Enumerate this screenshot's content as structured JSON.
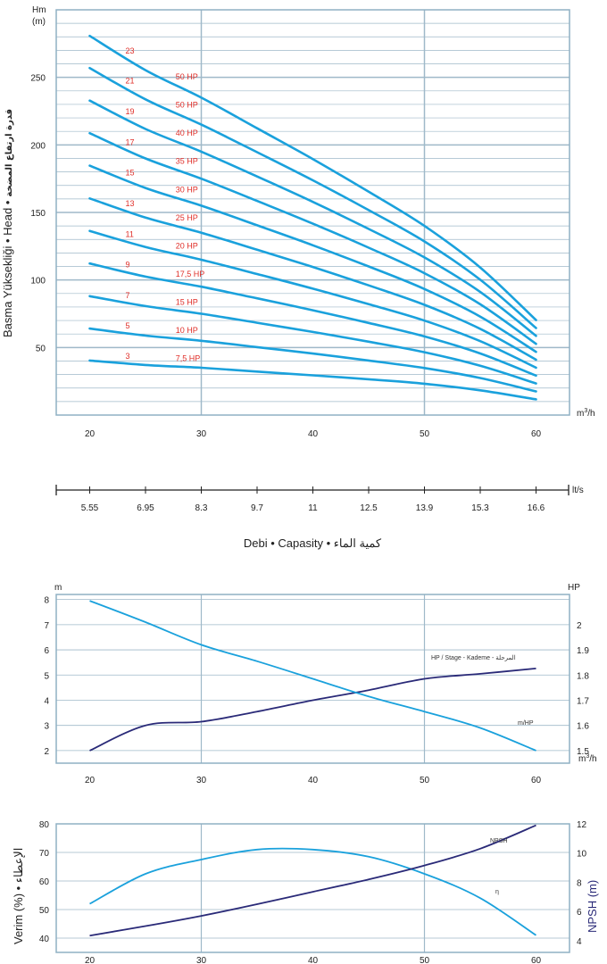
{
  "colors": {
    "grid": "#9fb9c9",
    "frame": "#8fb0c4",
    "curve": "#1aa1dc",
    "navy": "#2a2a78",
    "label_red": "#e0302a"
  },
  "head_chart": {
    "y_unit_line1": "Hm",
    "y_unit_line2": "(m)",
    "x_unit_base": "m",
    "x_unit_sup": "3",
    "x_unit_tail": "/h",
    "y_title_latin": "Basma Yüksekliği • Head •",
    "y_title_arabic": "قدرة ارتفاع المضخة"
  },
  "flow_scale": {
    "unit": "lt/s",
    "ticks": [
      "5.55",
      "6.95",
      "8.3",
      "9.7",
      "11",
      "12.5",
      "13.9",
      "15.3",
      "16.6"
    ]
  },
  "x_title": "Debi • Capasity • كمية الماء",
  "power_chart": {
    "left_unit": "m",
    "right_unit": "HP",
    "x_unit_base": "m",
    "x_unit_sup": "3",
    "x_unit_tail": "/h",
    "label_hp_stage": "HP / Stage - Kademe - المرحلة",
    "label_mhp": "m/HP"
  },
  "eff_chart": {
    "left_title": "Verim (%) • الإعطاء",
    "right_title": "NPSH (m)",
    "label_npsh": "NPSH",
    "label_eta": "η"
  },
  "chart_data": [
    {
      "type": "line",
      "title": "",
      "xlabel": "Debi • Capasity • كمية الماء",
      "ylabel": "Basma Yüksekliği • Head • قدرة ارتفاع المضخة",
      "x_unit": "m3/h",
      "y_unit": "Hm (m)",
      "xlim": [
        17,
        63
      ],
      "ylim": [
        0,
        300
      ],
      "x_ticks": [
        20,
        30,
        40,
        50,
        60
      ],
      "y_ticks": [
        50,
        100,
        150,
        200,
        250
      ],
      "grid": true,
      "x": [
        20,
        25,
        30,
        35,
        40,
        45,
        50,
        55,
        60
      ],
      "series": [
        {
          "name": "3",
          "hp": "7,5 HP",
          "values": [
            40.4,
            37.1,
            35,
            32.2,
            29.4,
            26.5,
            23.2,
            18.3,
            11.6
          ]
        },
        {
          "name": "5",
          "hp": "10 HP",
          "values": [
            64,
            58.8,
            55,
            50.3,
            45.5,
            40.4,
            34.8,
            27.4,
            17.5
          ]
        },
        {
          "name": "7",
          "hp": "15 HP",
          "values": [
            88,
            80.7,
            75,
            68.3,
            61.5,
            54.3,
            46.5,
            36.5,
            23.4
          ]
        },
        {
          "name": "9",
          "hp": "17,5 HP",
          "values": [
            112.2,
            102.5,
            95,
            86.4,
            77.6,
            68.2,
            58.2,
            45.6,
            29.2
          ]
        },
        {
          "name": "11",
          "hp": "20 HP",
          "values": [
            136.3,
            124.4,
            115,
            104.4,
            93.6,
            82.1,
            69.9,
            54.7,
            35.1
          ]
        },
        {
          "name": "13",
          "hp": "25 HP",
          "values": [
            160.4,
            146.2,
            135,
            122.4,
            109.6,
            96,
            81.6,
            63.8,
            41
          ]
        },
        {
          "name": "15",
          "hp": "30 HP",
          "values": [
            184.6,
            168.1,
            155,
            140.5,
            125.7,
            110,
            93.3,
            72.9,
            46.8
          ]
        },
        {
          "name": "17",
          "hp": "35 HP",
          "values": [
            208.7,
            190,
            175,
            158.5,
            141.7,
            123.9,
            105,
            82,
            52.7
          ]
        },
        {
          "name": "19",
          "hp": "40 HP",
          "values": [
            232.8,
            211.8,
            195,
            176.6,
            157.8,
            137.8,
            116.7,
            91.1,
            58.6
          ]
        },
        {
          "name": "21",
          "hp": "50 HP",
          "values": [
            256.9,
            233.7,
            215,
            194.6,
            173.8,
            151.7,
            128.5,
            100.2,
            64.4
          ]
        },
        {
          "name": "23",
          "hp": "50 HP",
          "values": [
            280.7,
            255.3,
            235,
            212.3,
            189.5,
            165.3,
            140,
            109.2,
            70.3
          ]
        }
      ]
    },
    {
      "type": "line",
      "title": "",
      "xlabel": "m3/h",
      "ylabel": "m",
      "y2label": "HP",
      "xlim": [
        17,
        63
      ],
      "ylim": [
        1.5,
        8.2
      ],
      "y2lim": [
        1.45,
        2.12
      ],
      "x_ticks": [
        20,
        30,
        40,
        50,
        60
      ],
      "y_ticks": [
        2,
        3,
        4,
        5,
        6,
        7,
        8
      ],
      "y2_ticks": [
        1.5,
        1.6,
        1.7,
        1.8,
        1.9,
        2
      ],
      "grid": true,
      "x": [
        20,
        25,
        30,
        35,
        40,
        45,
        50,
        55,
        60
      ],
      "series": [
        {
          "name": "HP / Stage - Kademe - المرحلة",
          "axis": "right",
          "values": [
            1.5,
            1.6,
            1.615,
            1.655,
            1.7,
            1.74,
            1.785,
            1.805,
            1.826
          ]
        },
        {
          "name": "m/HP",
          "axis": "left",
          "values": [
            7.95,
            7.1,
            6.2,
            5.55,
            4.85,
            4.15,
            3.55,
            2.9,
            2.0
          ]
        }
      ]
    },
    {
      "type": "line",
      "title": "",
      "xlabel": "",
      "ylabel": "Verim (%) • الإعطاء",
      "y2label": "NPSH (m)",
      "xlim": [
        17,
        63
      ],
      "ylim": [
        35,
        80
      ],
      "y2lim": [
        3.2,
        12
      ],
      "x_ticks": [
        20,
        30,
        40,
        50,
        60
      ],
      "y_ticks": [
        40,
        50,
        60,
        70,
        80
      ],
      "y2_ticks": [
        4,
        6,
        8,
        10,
        12
      ],
      "grid": true,
      "x": [
        20,
        25,
        30,
        35,
        40,
        45,
        50,
        55,
        60
      ],
      "series": [
        {
          "name": "η",
          "axis": "left",
          "values": [
            52,
            62.5,
            67.5,
            71,
            71,
            68.5,
            62.5,
            54,
            41
          ]
        },
        {
          "name": "NPSH",
          "axis": "right",
          "values": [
            4.35,
            5.0,
            5.7,
            6.5,
            7.35,
            8.2,
            9.15,
            10.3,
            11.9
          ]
        }
      ]
    }
  ]
}
